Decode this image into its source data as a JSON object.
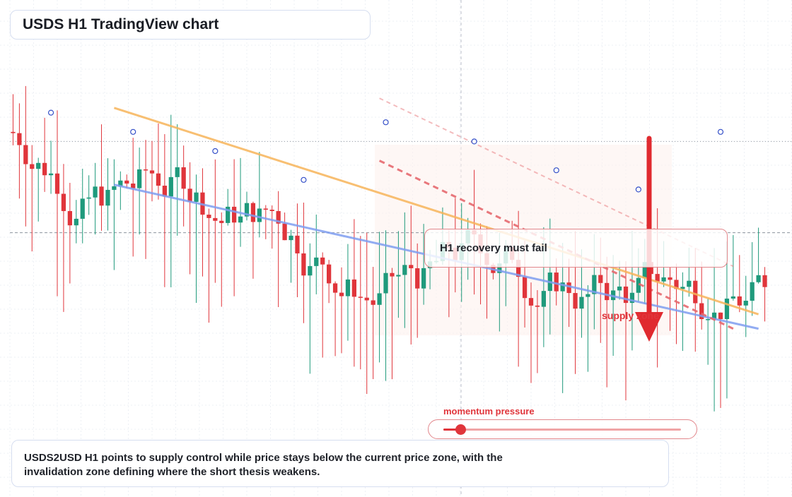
{
  "title": "USDS H1 TradingView chart",
  "callout": {
    "text": "H1 recovery must fail"
  },
  "zone_label": "supply zone",
  "momentum": {
    "label": "momentum pressure",
    "value": 0.07
  },
  "summary": "USDS2USD H1 points to supply control while price stays below the current price zone, with the invalidation zone defining where the short thesis weakens.",
  "colors": {
    "bull": "#1f9a7c",
    "bear": "#e0353b",
    "trend_orange": "#f7b55a",
    "trend_blue": "#7f9ef0",
    "dashed_red": "#e66a6f",
    "arrow": "#e02a2f",
    "marker": "#3550c8"
  },
  "chart_data": {
    "type": "candlestick",
    "title": "USDS H1 TradingView chart",
    "timeframe": "H1",
    "symbol": "USDS2USD",
    "candle_count": 120,
    "ylim": [
      0,
      100
    ],
    "seed": 7,
    "trendlines": [
      {
        "name": "orange",
        "from": [
          16,
          79
        ],
        "to": [
          118,
          36
        ]
      },
      {
        "name": "blue",
        "from": [
          16,
          63
        ],
        "to": [
          118,
          33
        ]
      },
      {
        "name": "red-dashed-1",
        "from": [
          58,
          81
        ],
        "to": [
          114,
          46
        ]
      },
      {
        "name": "red-dashed-2",
        "from": [
          58,
          68
        ],
        "to": [
          114,
          33
        ]
      }
    ],
    "reference_lines": [
      {
        "label": "",
        "y": 72,
        "style": "dotted"
      },
      {
        "label": "",
        "y": 53,
        "style": "dashed"
      }
    ],
    "markers": [
      6,
      19,
      32,
      46,
      59,
      73,
      86,
      99,
      112
    ],
    "arrow": {
      "direction": "down",
      "label": "supply zone"
    }
  }
}
